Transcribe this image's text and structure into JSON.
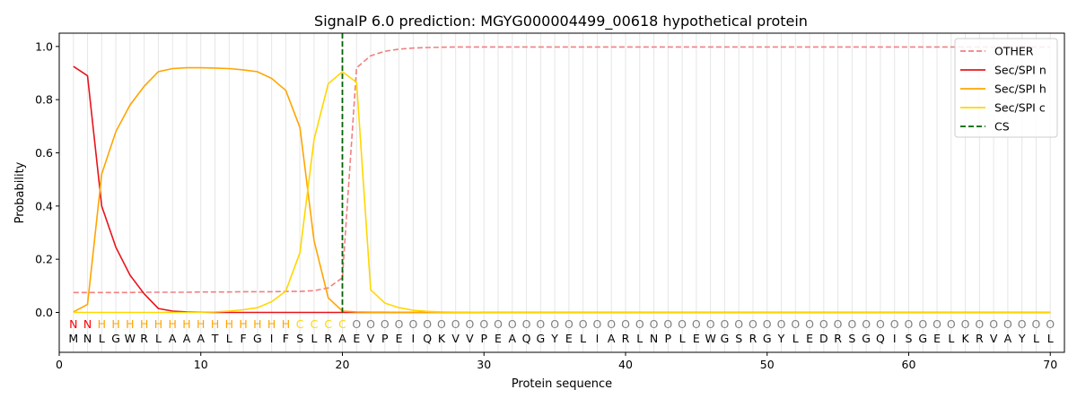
{
  "chart_data": {
    "type": "line",
    "title": "SignalP 6.0 prediction: MGYG000004499_00618 hypothetical protein",
    "xlabel": "Protein sequence",
    "ylabel": "Probability",
    "xlim": [
      0,
      71
    ],
    "ylim": [
      -0.15,
      1.05
    ],
    "x_ticks": [
      0,
      10,
      20,
      30,
      40,
      50,
      60,
      70
    ],
    "y_ticks": [
      0.0,
      0.2,
      0.4,
      0.6,
      0.8,
      1.0
    ],
    "x_tick_labels": [
      "0",
      "10",
      "20",
      "30",
      "40",
      "50",
      "60",
      "70"
    ],
    "y_tick_labels": [
      "0.0",
      "0.2",
      "0.4",
      "0.6",
      "0.8",
      "1.0"
    ],
    "grid": "vertical lines at each residue",
    "legend_position": "top-right",
    "sequence": [
      "M",
      "N",
      "L",
      "G",
      "W",
      "R",
      "L",
      "A",
      "A",
      "A",
      "T",
      "L",
      "F",
      "G",
      "I",
      "F",
      "S",
      "L",
      "R",
      "A",
      "E",
      "V",
      "P",
      "E",
      "I",
      "Q",
      "K",
      "V",
      "V",
      "P",
      "E",
      "A",
      "Q",
      "G",
      "Y",
      "E",
      "L",
      "I",
      "A",
      "R",
      "L",
      "N",
      "P",
      "L",
      "E",
      "W",
      "G",
      "S",
      "R",
      "G",
      "Y",
      "L",
      "E",
      "D",
      "R",
      "S",
      "G",
      "Q",
      "I",
      "S",
      "G",
      "E",
      "L",
      "K",
      "R",
      "V",
      "A",
      "Y",
      "L",
      "L"
    ],
    "labels": [
      "N",
      "N",
      "H",
      "H",
      "H",
      "H",
      "H",
      "H",
      "H",
      "H",
      "H",
      "H",
      "H",
      "H",
      "H",
      "H",
      "C",
      "C",
      "C",
      "C",
      "O",
      "O",
      "O",
      "O",
      "O",
      "O",
      "O",
      "O",
      "O",
      "O",
      "O",
      "O",
      "O",
      "O",
      "O",
      "O",
      "O",
      "O",
      "O",
      "O",
      "O",
      "O",
      "O",
      "O",
      "O",
      "O",
      "O",
      "O",
      "O",
      "O",
      "O",
      "O",
      "O",
      "O",
      "O",
      "O",
      "O",
      "O",
      "O",
      "O",
      "O",
      "O",
      "O",
      "O",
      "O",
      "O",
      "O",
      "O",
      "O",
      "O"
    ],
    "label_colors": {
      "N": "#ff0000",
      "H": "#ffa500",
      "C": "#ffd700",
      "O": "#808080"
    },
    "cs_position": 20,
    "series": [
      {
        "name": "OTHER",
        "color": "#f08080",
        "dash": true,
        "values": [
          0.075,
          0.075,
          0.075,
          0.075,
          0.075,
          0.076,
          0.076,
          0.076,
          0.076,
          0.077,
          0.077,
          0.077,
          0.078,
          0.078,
          0.078,
          0.079,
          0.079,
          0.082,
          0.092,
          0.13,
          0.92,
          0.965,
          0.982,
          0.99,
          0.994,
          0.996,
          0.997,
          0.998,
          0.998,
          0.998,
          0.998,
          0.998,
          0.998,
          0.998,
          0.998,
          0.998,
          0.998,
          0.998,
          0.998,
          0.998,
          0.998,
          0.998,
          0.998,
          0.998,
          0.998,
          0.998,
          0.998,
          0.998,
          0.998,
          0.998,
          0.998,
          0.998,
          0.998,
          0.998,
          0.998,
          0.998,
          0.998,
          0.998,
          0.998,
          0.998,
          0.998,
          0.998,
          0.998,
          0.998,
          0.998,
          0.998,
          0.998,
          0.998,
          0.998,
          0.998
        ]
      },
      {
        "name": "Sec/SPI n",
        "color": "#e8141a",
        "dash": false,
        "values": [
          0.925,
          0.89,
          0.4,
          0.245,
          0.14,
          0.07,
          0.015,
          0.005,
          0.002,
          0.001,
          0,
          0,
          0,
          0,
          0,
          0,
          0,
          0,
          0,
          0,
          0,
          0,
          0,
          0,
          0,
          0,
          0,
          0,
          0,
          0,
          0,
          0,
          0,
          0,
          0,
          0,
          0,
          0,
          0,
          0,
          0,
          0,
          0,
          0,
          0,
          0,
          0,
          0,
          0,
          0,
          0,
          0,
          0,
          0,
          0,
          0,
          0,
          0,
          0,
          0,
          0,
          0,
          0,
          0,
          0,
          0,
          0,
          0,
          0,
          0
        ]
      },
      {
        "name": "Sec/SPI h",
        "color": "#ffa500",
        "dash": false,
        "values": [
          0.002,
          0.03,
          0.52,
          0.68,
          0.78,
          0.85,
          0.905,
          0.917,
          0.92,
          0.92,
          0.919,
          0.917,
          0.912,
          0.905,
          0.88,
          0.835,
          0.695,
          0.27,
          0.055,
          0.005,
          0.002,
          0.001,
          0.001,
          0,
          0,
          0,
          0,
          0,
          0,
          0,
          0,
          0,
          0,
          0,
          0,
          0,
          0,
          0,
          0,
          0,
          0,
          0,
          0,
          0,
          0,
          0,
          0,
          0,
          0,
          0,
          0,
          0,
          0,
          0,
          0,
          0,
          0,
          0,
          0,
          0,
          0,
          0,
          0,
          0,
          0,
          0,
          0,
          0,
          0,
          0
        ]
      },
      {
        "name": "Sec/SPI c",
        "color": "#ffd700",
        "dash": false,
        "values": [
          0,
          0,
          0,
          0,
          0,
          0,
          0,
          0,
          0,
          0.001,
          0.002,
          0.005,
          0.01,
          0.018,
          0.04,
          0.08,
          0.225,
          0.65,
          0.86,
          0.905,
          0.865,
          0.085,
          0.035,
          0.018,
          0.008,
          0.004,
          0.002,
          0.001,
          0.001,
          0,
          0,
          0,
          0,
          0,
          0,
          0,
          0,
          0,
          0,
          0,
          0,
          0,
          0,
          0,
          0,
          0,
          0,
          0,
          0,
          0,
          0,
          0,
          0,
          0,
          0,
          0,
          0,
          0,
          0,
          0,
          0,
          0,
          0,
          0,
          0,
          0,
          0,
          0,
          0,
          0
        ]
      },
      {
        "name": "CS",
        "color": "#006400",
        "dash": true,
        "vertical_at": 20
      }
    ]
  }
}
